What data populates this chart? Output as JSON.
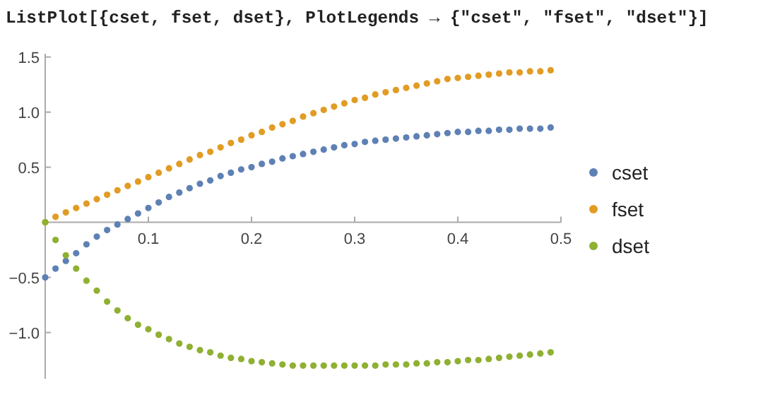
{
  "chart_data": {
    "type": "scatter",
    "title": "ListPlot[{cset, fset, dset}, PlotLegends → {\"cset\", \"fset\", \"dset\"}]",
    "x": [
      0,
      0.01,
      0.02,
      0.03,
      0.04,
      0.05,
      0.06,
      0.07,
      0.08,
      0.09,
      0.1,
      0.11,
      0.12,
      0.13,
      0.14,
      0.15,
      0.16,
      0.17,
      0.18,
      0.19,
      0.2,
      0.21,
      0.22,
      0.23,
      0.24,
      0.25,
      0.26,
      0.27,
      0.28,
      0.29,
      0.3,
      0.31,
      0.32,
      0.33,
      0.34,
      0.35,
      0.36,
      0.37,
      0.38,
      0.39,
      0.4,
      0.41,
      0.42,
      0.43,
      0.44,
      0.45,
      0.46,
      0.47,
      0.48,
      0.49
    ],
    "series": [
      {
        "name": "cset",
        "color": "#5e81b5",
        "values": [
          -0.5,
          -0.42,
          -0.35,
          -0.28,
          -0.2,
          -0.13,
          -0.07,
          -0.02,
          0.03,
          0.08,
          0.13,
          0.18,
          0.23,
          0.27,
          0.31,
          0.35,
          0.38,
          0.42,
          0.45,
          0.48,
          0.5,
          0.53,
          0.55,
          0.58,
          0.6,
          0.62,
          0.64,
          0.66,
          0.68,
          0.7,
          0.71,
          0.73,
          0.74,
          0.75,
          0.76,
          0.77,
          0.78,
          0.79,
          0.8,
          0.81,
          0.82,
          0.82,
          0.83,
          0.83,
          0.84,
          0.84,
          0.85,
          0.85,
          0.85,
          0.86
        ]
      },
      {
        "name": "fset",
        "color": "#e19c24",
        "values": [
          0,
          0.05,
          0.09,
          0.13,
          0.17,
          0.21,
          0.25,
          0.29,
          0.33,
          0.37,
          0.41,
          0.45,
          0.49,
          0.53,
          0.57,
          0.61,
          0.64,
          0.68,
          0.72,
          0.75,
          0.79,
          0.82,
          0.86,
          0.89,
          0.92,
          0.96,
          0.99,
          1.02,
          1.05,
          1.08,
          1.11,
          1.13,
          1.16,
          1.18,
          1.2,
          1.22,
          1.24,
          1.26,
          1.28,
          1.3,
          1.31,
          1.32,
          1.33,
          1.34,
          1.35,
          1.36,
          1.36,
          1.37,
          1.37,
          1.38
        ]
      },
      {
        "name": "dset",
        "color": "#8fb032",
        "values": [
          0,
          -0.16,
          -0.3,
          -0.42,
          -0.53,
          -0.62,
          -0.72,
          -0.8,
          -0.87,
          -0.93,
          -0.97,
          -1.02,
          -1.06,
          -1.1,
          -1.13,
          -1.16,
          -1.18,
          -1.21,
          -1.23,
          -1.24,
          -1.26,
          -1.27,
          -1.28,
          -1.29,
          -1.3,
          -1.3,
          -1.3,
          -1.3,
          -1.3,
          -1.3,
          -1.3,
          -1.3,
          -1.3,
          -1.29,
          -1.29,
          -1.29,
          -1.28,
          -1.28,
          -1.27,
          -1.27,
          -1.26,
          -1.25,
          -1.25,
          -1.24,
          -1.23,
          -1.22,
          -1.21,
          -1.2,
          -1.19,
          -1.18
        ]
      }
    ],
    "xlim": [
      0,
      0.5
    ],
    "ylim": [
      -1.42,
      1.53
    ],
    "xticks": [
      0.1,
      0.2,
      0.3,
      0.4,
      0.5
    ],
    "yticks": [
      {
        "value": -1,
        "label": "−1.0"
      },
      {
        "value": -0.5,
        "label": "−0.5"
      },
      0.5,
      {
        "value": 1,
        "label": "1.0"
      },
      1.5
    ],
    "marker": "circle",
    "legend": "right",
    "grid": false
  }
}
